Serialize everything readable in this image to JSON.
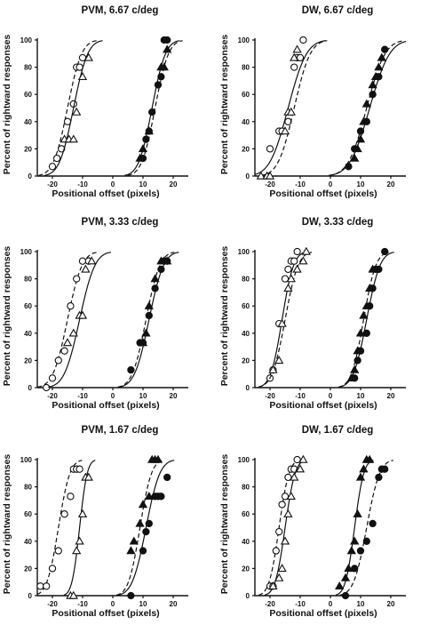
{
  "chart_data": [
    {
      "type": "scatter",
      "title": "PVM, 6.67 c/deg",
      "xlabel": "Positional offset (pixels)",
      "ylabel": "Percent of rightward responses",
      "xlim": [
        -25,
        25
      ],
      "ylim": [
        0,
        100
      ],
      "xticks": [
        "-20",
        "-10",
        "0",
        "10",
        "20"
      ],
      "yticks": [
        "0",
        "20",
        "40",
        "60",
        "80",
        "100"
      ],
      "grid": false,
      "series": [
        {
          "marker": "circle-open",
          "x": [
            -20,
            -18.5,
            -17,
            -15,
            -13,
            -12,
            -11,
            -10
          ],
          "y": [
            7,
            13,
            20,
            40,
            53,
            80,
            80,
            87
          ],
          "curve": {
            "mu": -15,
            "sigma": 3.7,
            "dash": "5,3"
          }
        },
        {
          "marker": "triangle-open",
          "x": [
            -16,
            -14.5,
            -13,
            -12,
            -10,
            -8
          ],
          "y": [
            27,
            27,
            27,
            47,
            73,
            87
          ],
          "curve": {
            "mu": -13,
            "sigma": 3.7,
            "dash": ""
          }
        },
        {
          "marker": "triangle-filled",
          "x": [
            9,
            10,
            12,
            16,
            17,
            18
          ],
          "y": [
            13,
            20,
            33,
            80,
            80,
            93
          ],
          "curve": {
            "mu": 13,
            "sigma": 3.5,
            "dash": ""
          }
        },
        {
          "marker": "circle-filled",
          "x": [
            10,
            11,
            12,
            13,
            15,
            16,
            17,
            18
          ],
          "y": [
            13,
            27,
            33,
            47,
            67,
            73,
            100,
            100
          ],
          "curve": {
            "mu": 14,
            "sigma": 3.5,
            "dash": "5,3"
          }
        }
      ]
    },
    {
      "type": "scatter",
      "title": "DW, 6.67 c/deg",
      "xlabel": "Positional offset (pixels)",
      "ylabel": "Percent of rightward responses",
      "xlim": [
        -25,
        25
      ],
      "ylim": [
        0,
        100
      ],
      "xticks": [
        "-20",
        "-10",
        "0",
        "10",
        "20"
      ],
      "yticks": [
        "0",
        "20",
        "40",
        "60",
        "80",
        "100"
      ],
      "grid": false,
      "series": [
        {
          "marker": "circle-open",
          "x": [
            -20,
            -17,
            -16,
            -14,
            -12,
            -11,
            -10,
            -9
          ],
          "y": [
            20,
            33,
            33,
            40,
            80,
            87,
            87,
            100
          ],
          "curve": {
            "mu": -14,
            "sigma": 4.8,
            "dash": ""
          }
        },
        {
          "marker": "triangle-open",
          "x": [
            -23,
            -21,
            -20,
            -15,
            -14,
            -13,
            -12,
            -11
          ],
          "y": [
            0,
            0,
            0,
            33,
            47,
            47,
            87,
            93
          ],
          "curve": {
            "mu": -12,
            "sigma": 4.2,
            "dash": "5,3"
          }
        },
        {
          "marker": "triangle-filled",
          "x": [
            8,
            9,
            10,
            11,
            12,
            14,
            15,
            16,
            17
          ],
          "y": [
            13,
            20,
            27,
            40,
            53,
            67,
            73,
            80,
            87
          ],
          "curve": {
            "mu": 12,
            "sigma": 4.8,
            "dash": "5,3"
          }
        },
        {
          "marker": "circle-filled",
          "x": [
            6,
            8,
            10,
            12,
            14,
            16,
            18
          ],
          "y": [
            7,
            20,
            33,
            40,
            60,
            73,
            93
          ],
          "curve": {
            "mu": 13,
            "sigma": 5.2,
            "dash": ""
          }
        }
      ]
    },
    {
      "type": "scatter",
      "title": "PVM, 3.33 c/deg",
      "xlabel": "Positional offset (pixels)",
      "ylabel": "Percent of rightward responses",
      "xlim": [
        -25,
        25
      ],
      "ylim": [
        0,
        100
      ],
      "xticks": [
        "-20",
        "-10",
        "0",
        "10",
        "20"
      ],
      "yticks": [
        "0",
        "20",
        "40",
        "60",
        "80",
        "100"
      ],
      "grid": false,
      "series": [
        {
          "marker": "circle-open",
          "x": [
            -22,
            -20,
            -18,
            -16,
            -14,
            -12,
            -10,
            -8
          ],
          "y": [
            0,
            7,
            20,
            27,
            60,
            80,
            93,
            93
          ],
          "curve": {
            "mu": -15,
            "sigma": 3.8,
            "dash": "5,3"
          }
        },
        {
          "marker": "triangle-open",
          "x": [
            -15,
            -13,
            -11,
            -10,
            -9,
            -7
          ],
          "y": [
            33,
            40,
            53,
            53,
            87,
            93
          ],
          "curve": {
            "mu": -11,
            "sigma": 4.0,
            "dash": ""
          }
        },
        {
          "marker": "triangle-filled",
          "x": [
            10,
            11,
            12,
            14,
            16,
            17,
            18
          ],
          "y": [
            33,
            40,
            60,
            80,
            93,
            93,
            93
          ],
          "curve": {
            "mu": 11,
            "sigma": 3.6,
            "dash": "5,3"
          }
        },
        {
          "marker": "circle-filled",
          "x": [
            6,
            9,
            10,
            12,
            14,
            16,
            17,
            18
          ],
          "y": [
            13,
            33,
            33,
            53,
            73,
            87,
            93,
            93
          ],
          "curve": {
            "mu": 12,
            "sigma": 3.8,
            "dash": ""
          }
        }
      ]
    },
    {
      "type": "scatter",
      "title": "DW, 3.33 c/deg",
      "xlabel": "Positional offset (pixels)",
      "ylabel": "Percent of rightward responses",
      "xlim": [
        -25,
        25
      ],
      "ylim": [
        0,
        100
      ],
      "xticks": [
        "-20",
        "-10",
        "0",
        "10",
        "20"
      ],
      "yticks": [
        "0",
        "20",
        "40",
        "60",
        "80",
        "100"
      ],
      "grid": false,
      "series": [
        {
          "marker": "circle-open",
          "x": [
            -20,
            -19,
            -17,
            -15,
            -14,
            -13,
            -12,
            -11
          ],
          "y": [
            7,
            13,
            47,
            80,
            87,
            93,
            93,
            100
          ],
          "curve": {
            "mu": -16,
            "sigma": 3.0,
            "dash": ""
          }
        },
        {
          "marker": "triangle-open",
          "x": [
            -19,
            -17,
            -16,
            -14,
            -13,
            -11,
            -9,
            -8
          ],
          "y": [
            13,
            20,
            47,
            73,
            80,
            87,
            93,
            100
          ],
          "curve": {
            "mu": -15,
            "sigma": 3.4,
            "dash": "5,3"
          }
        },
        {
          "marker": "triangle-filled",
          "x": [
            7,
            8,
            9,
            10,
            11,
            12,
            13,
            14
          ],
          "y": [
            7,
            13,
            27,
            40,
            53,
            60,
            73,
            87
          ],
          "curve": {
            "mu": 11,
            "sigma": 3.2,
            "dash": "5,3"
          }
        },
        {
          "marker": "circle-filled",
          "x": [
            8,
            9,
            10,
            12,
            13,
            14,
            15,
            16,
            18
          ],
          "y": [
            7,
            20,
            27,
            40,
            60,
            73,
            87,
            87,
            100
          ],
          "curve": {
            "mu": 12,
            "sigma": 3.5,
            "dash": ""
          }
        }
      ]
    },
    {
      "type": "scatter",
      "title": "PVM, 1.67 c/deg",
      "xlabel": "Positional offset (pixels)",
      "ylabel": "Percent of rightward responses",
      "xlim": [
        -25,
        25
      ],
      "ylim": [
        0,
        100
      ],
      "xticks": [
        "-20",
        "-10",
        "0",
        "10",
        "20"
      ],
      "yticks": [
        "0",
        "20",
        "40",
        "60",
        "80",
        "100"
      ],
      "grid": false,
      "series": [
        {
          "marker": "circle-open",
          "x": [
            -24,
            -22,
            -20,
            -18,
            -16,
            -14,
            -13,
            -12,
            -11
          ],
          "y": [
            7,
            7,
            20,
            33,
            60,
            73,
            93,
            93,
            93
          ],
          "curve": {
            "mu": -18,
            "sigma": 3.0,
            "dash": "5,3"
          }
        },
        {
          "marker": "triangle-open",
          "x": [
            -14,
            -13,
            -12,
            -11,
            -10,
            -9,
            -8
          ],
          "y": [
            0,
            0,
            33,
            40,
            60,
            87,
            87
          ],
          "curve": {
            "mu": -11,
            "sigma": 2.0,
            "dash": ""
          }
        },
        {
          "marker": "triangle-filled",
          "x": [
            6,
            7,
            9,
            10,
            12,
            13,
            14,
            15
          ],
          "y": [
            33,
            40,
            53,
            67,
            73,
            100,
            100,
            100
          ],
          "curve": {
            "mu": 9,
            "sigma": 3.0,
            "dash": "5,3"
          }
        },
        {
          "marker": "circle-filled",
          "x": [
            6,
            10,
            11,
            12,
            14,
            15,
            16,
            18
          ],
          "y": [
            0,
            33,
            47,
            53,
            73,
            73,
            73,
            87
          ],
          "curve": {
            "mu": 11,
            "sigma": 3.6,
            "dash": ""
          }
        }
      ]
    },
    {
      "type": "scatter",
      "title": "DW, 1.67 c/deg",
      "xlabel": "Positional offset (pixels)",
      "ylabel": "Percent of rightward responses",
      "xlim": [
        -25,
        25
      ],
      "ylim": [
        0,
        100
      ],
      "xticks": [
        "-20",
        "-10",
        "0",
        "10",
        "20"
      ],
      "yticks": [
        "0",
        "20",
        "40",
        "60",
        "80",
        "100"
      ],
      "grid": false,
      "series": [
        {
          "marker": "circle-open",
          "x": [
            -20,
            -19,
            -18,
            -17,
            -16,
            -15,
            -14,
            -13,
            -12,
            -11
          ],
          "y": [
            7,
            7,
            33,
            47,
            67,
            73,
            87,
            93,
            93,
            100
          ],
          "curve": {
            "mu": -17,
            "sigma": 2.6,
            "dash": "5,3"
          }
        },
        {
          "marker": "triangle-open",
          "x": [
            -19,
            -17,
            -16,
            -15,
            -14,
            -13,
            -12,
            -10,
            -9
          ],
          "y": [
            7,
            13,
            20,
            40,
            60,
            73,
            87,
            93,
            100
          ],
          "curve": {
            "mu": -15,
            "sigma": 2.6,
            "dash": ""
          }
        },
        {
          "marker": "triangle-filled",
          "x": [
            3,
            5,
            6,
            7,
            8,
            9,
            10,
            11,
            12,
            13
          ],
          "y": [
            7,
            13,
            20,
            33,
            40,
            60,
            87,
            93,
            100,
            100
          ],
          "curve": {
            "mu": 8,
            "sigma": 2.4,
            "dash": ""
          }
        },
        {
          "marker": "circle-filled",
          "x": [
            5,
            8,
            10,
            12,
            14,
            16,
            17,
            18
          ],
          "y": [
            0,
            20,
            33,
            40,
            53,
            87,
            93,
            93
          ],
          "curve": {
            "mu": 12,
            "sigma": 3.4,
            "dash": "5,3"
          }
        }
      ]
    }
  ]
}
